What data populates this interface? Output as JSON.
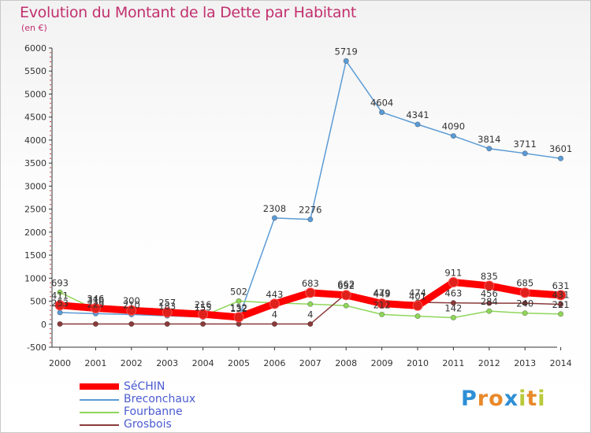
{
  "title": "Evolution du Montant de la Dette par Habitant",
  "subtitle": "(en €)",
  "logo": {
    "text": "Proxiti",
    "letters": [
      "P",
      "r",
      "o",
      "x",
      "i",
      "t",
      "i"
    ],
    "colors": [
      "#2d8fd6",
      "#e8892a",
      "#e8892a",
      "#2d8fd6",
      "#b9c93a",
      "#e8892a",
      "#b9c93a"
    ]
  },
  "chart_data": {
    "type": "line",
    "title": "Evolution du Montant de la Dette par Habitant",
    "xlabel": "",
    "ylabel": "(en €)",
    "ylim": [
      -500,
      6000
    ],
    "yticks": [
      -500,
      0,
      500,
      1000,
      1500,
      2000,
      2500,
      3000,
      3500,
      4000,
      4500,
      5000,
      5500,
      6000
    ],
    "categories": [
      "2000",
      "2001",
      "2002",
      "2003",
      "2004",
      "2005",
      "2006",
      "2007",
      "2008",
      "2009",
      "2010",
      "2011",
      "2012",
      "2013",
      "2014"
    ],
    "grid": false,
    "legend_position": "bottom-left",
    "series": [
      {
        "name": "Breconchaux",
        "color": "#5b9bd5",
        "values": [
          253,
          229,
          210,
          183,
          155,
          132,
          2308,
          2276,
          5719,
          4604,
          4341,
          4090,
          3814,
          3711,
          3601
        ],
        "labels": [
          "253",
          "229",
          "210",
          "183",
          "155",
          "132",
          "2308",
          "2276",
          "5719",
          "4604",
          "4341",
          "4090",
          "3814",
          "3711",
          "3601"
        ]
      },
      {
        "name": "Fourbanne",
        "color": "#8fd65a",
        "values": [
          693,
          316,
          250,
          199,
          175,
          502,
          460,
          437,
          403,
          212,
          174,
          142,
          284,
          240,
          221
        ],
        "labels": [
          "693",
          "316",
          "",
          "",
          "",
          "502",
          "",
          "",
          "",
          "212",
          "",
          "142",
          "284",
          "240",
          "221"
        ]
      },
      {
        "name": "Grosbois",
        "color": "#8a3a3a",
        "values": [
          4,
          4,
          4,
          4,
          4,
          4,
          4,
          4,
          662,
          479,
          474,
          463,
          456,
          456,
          431
        ],
        "labels": [
          "",
          "",
          "",
          "",
          "",
          "",
          "4",
          "4",
          "662",
          "479",
          "474",
          "463",
          "456",
          "",
          "431"
        ]
      },
      {
        "name": "SéCHIN",
        "color": "#ff0000",
        "values": [
          411,
          346,
          300,
          257,
          216,
          152,
          443,
          683,
          632,
          449,
          401,
          911,
          835,
          685,
          631
        ],
        "labels": [
          "411",
          "346",
          "300",
          "257",
          "216",
          "152",
          "443",
          "683",
          "632",
          "449",
          "401",
          "911",
          "835",
          "685",
          "631"
        ]
      }
    ]
  },
  "legend": [
    {
      "label": "SéCHIN",
      "color": "#ff0000",
      "thick": true
    },
    {
      "label": "Breconchaux",
      "color": "#5b9bd5",
      "thick": false
    },
    {
      "label": "Fourbanne",
      "color": "#8fd65a",
      "thick": false
    },
    {
      "label": "Grosbois",
      "color": "#8a3a3a",
      "thick": false
    }
  ]
}
